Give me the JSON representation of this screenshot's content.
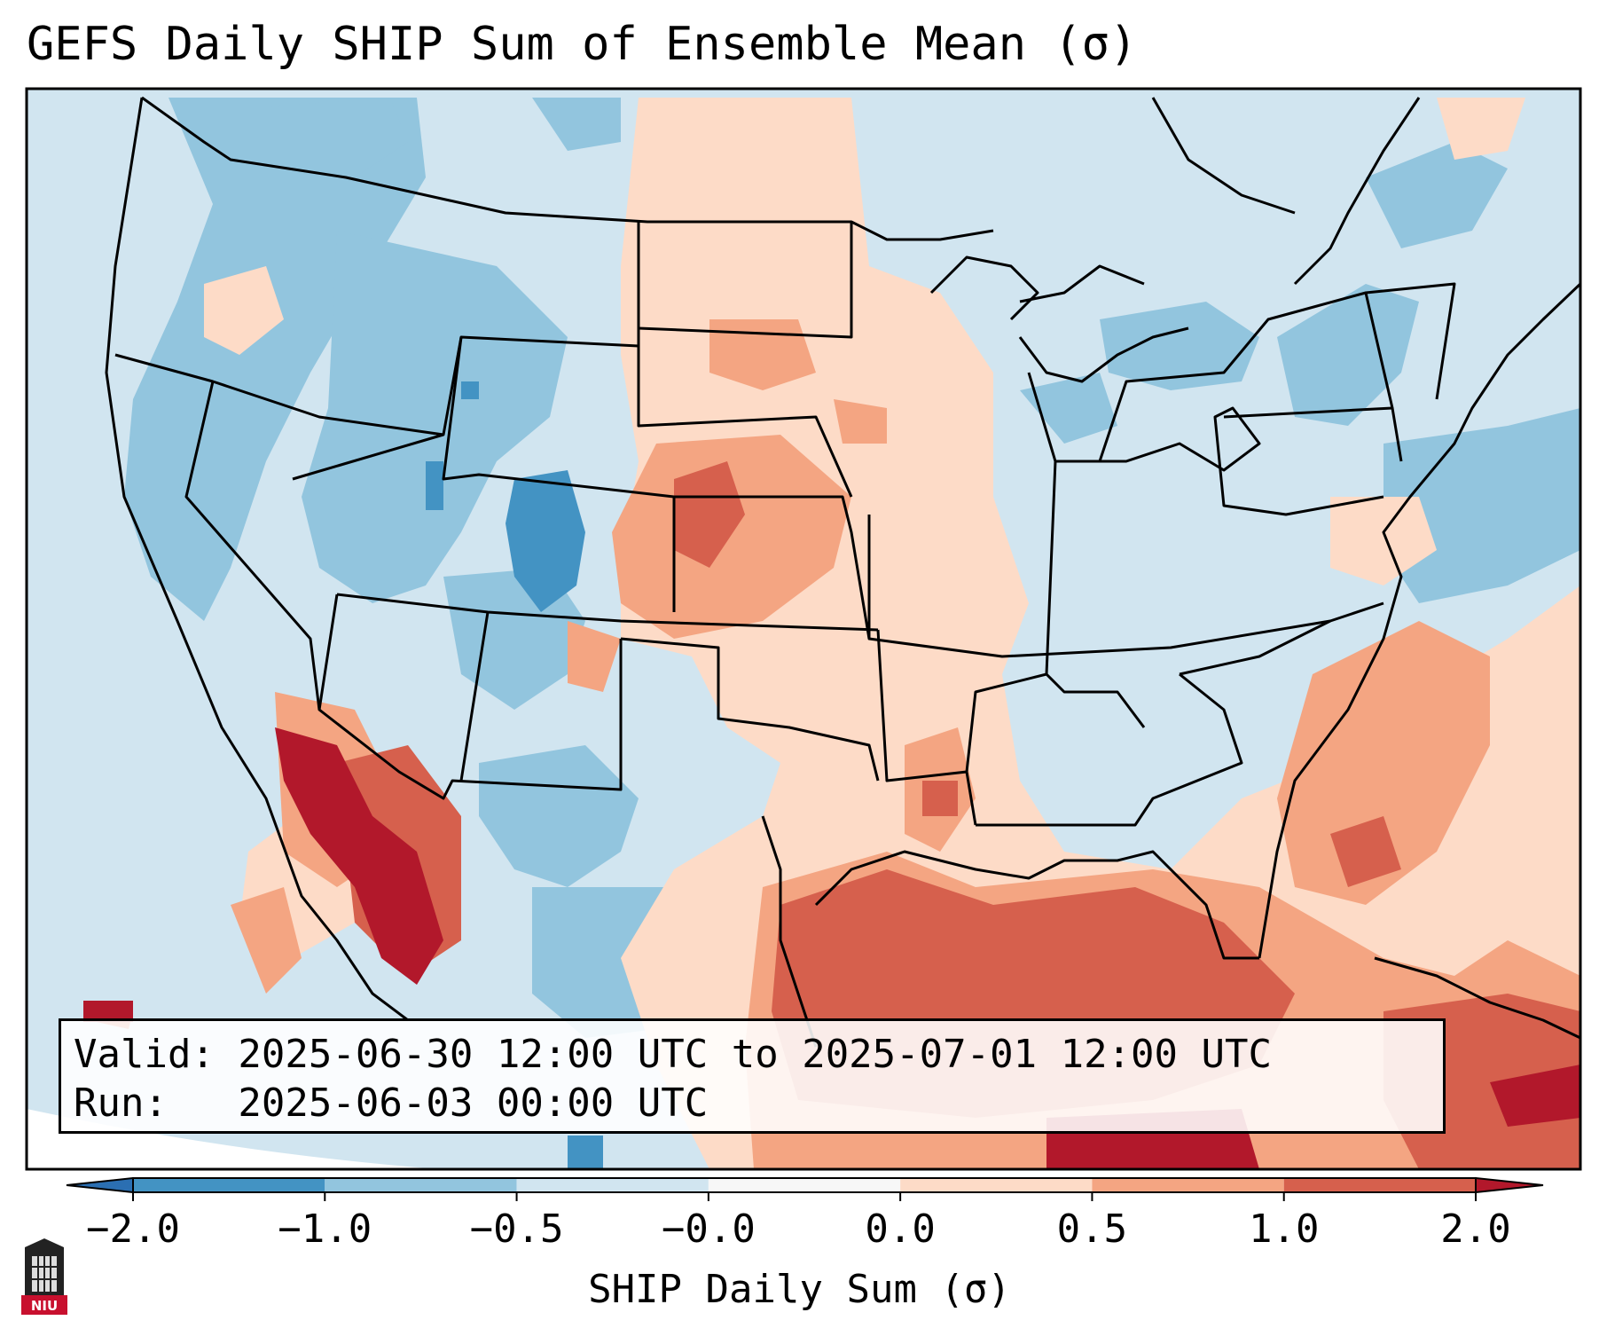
{
  "title": "GEFS Daily SHIP Sum of Ensemble Mean (σ)",
  "valid_line": "Valid: 2025-06-30 12:00 UTC to 2025-07-01 12:00 UTC",
  "run_line": "Run:   2025-06-03 00:00 UTC",
  "colorbar": {
    "label": "SHIP Daily Sum (σ)",
    "ticks": [
      "−2.0",
      "−1.0",
      "−0.5",
      "−0.0",
      "0.0",
      "0.5",
      "1.0",
      "2.0"
    ],
    "colors": [
      "#2b6fb2",
      "#4393c3",
      "#92c5de",
      "#d1e5f0",
      "#f7f7f7",
      "#fddbc7",
      "#f4a582",
      "#d6604d",
      "#b2182b"
    ]
  },
  "legend_colors": {
    "very_low": "#2b6fb2",
    "low": "#4393c3",
    "mild_low": "#92c5de",
    "near_low": "#d1e5f0",
    "near_high": "#fddbc7",
    "mild_high": "#f4a582",
    "high": "#d6604d",
    "very_high": "#b2182b"
  },
  "logo_text": "NIU"
}
